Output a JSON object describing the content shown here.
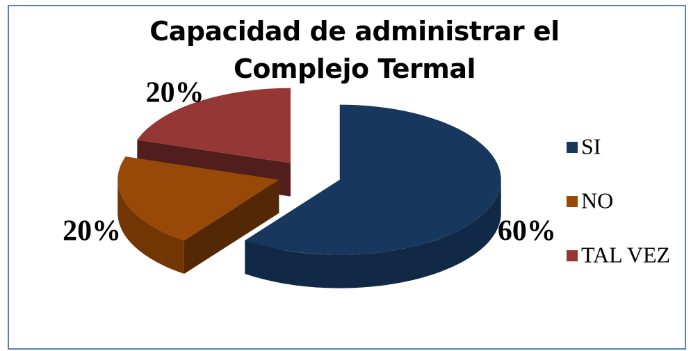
{
  "chart_data": {
    "type": "pie",
    "title": "Capacidad de administrar el Complejo Termal",
    "categories": [
      "SI",
      "NO",
      "TAL VEZ"
    ],
    "values": [
      60,
      20,
      20
    ],
    "value_labels": [
      "60%",
      "20%",
      "20%"
    ],
    "colors": [
      "#17375e",
      "#984807",
      "#953735"
    ],
    "legend": "right"
  }
}
